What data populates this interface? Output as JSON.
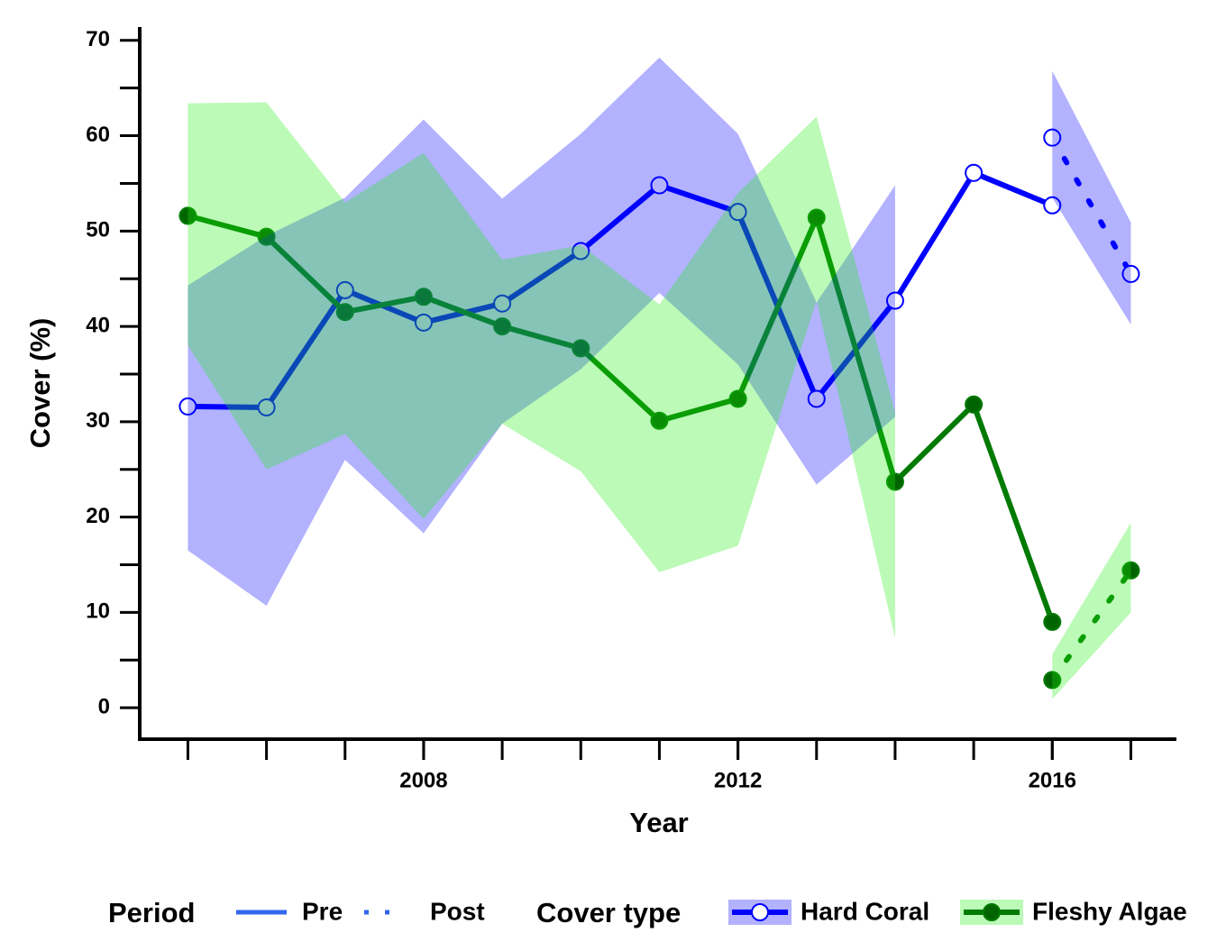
{
  "chart_data": {
    "type": "line",
    "x_label": "Year",
    "y_label": "Cover (%)",
    "xlim": [
      2004.41,
      2017.58
    ],
    "ylim": [
      -3.3,
      71.4
    ],
    "xticks": [
      2008,
      2012,
      2016
    ],
    "xminor_ticks": [
      2005,
      2006,
      2007,
      2008,
      2009,
      2010,
      2011,
      2012,
      2013,
      2014,
      2015,
      2016,
      2017
    ],
    "yticks": [
      0,
      10,
      20,
      30,
      40,
      50,
      60,
      70
    ],
    "yminor_ticks": [
      5,
      15,
      25,
      35,
      45,
      55,
      65
    ],
    "legend": {
      "period_title": "Period",
      "cover_type_title": "Cover type",
      "period_color": "#3366ee"
    },
    "periods": [
      {
        "name": "Pre",
        "dash": "solid"
      },
      {
        "name": "Post",
        "dash": "dotted"
      }
    ],
    "cover_types": [
      {
        "name": "Hard Coral",
        "color": "#0000ff",
        "ribbon_color": "#0000ff",
        "marker_fill": "#ffffff"
      },
      {
        "name": "Fleshy Algae",
        "color": "#007a00",
        "ribbon_color": "#22ee11",
        "marker_fill": "#006400"
      }
    ],
    "series": [
      {
        "cover_type": "Hard Coral",
        "period": "Pre",
        "x": [
          2005,
          2006,
          2007,
          2008,
          2009,
          2010,
          2011,
          2012,
          2013,
          2014,
          2015,
          2016
        ],
        "values": [
          31.6,
          31.5,
          43.8,
          40.4,
          42.4,
          47.9,
          54.8,
          52.0,
          32.4,
          42.7,
          56.1,
          52.7
        ],
        "upper": [
          44.3,
          49.5,
          53.5,
          61.7,
          53.4,
          60.2,
          68.2,
          60.2,
          42.5,
          54.8,
          null,
          null
        ],
        "lower": [
          16.5,
          10.7,
          26.0,
          18.3,
          29.8,
          35.5,
          43.5,
          36.0,
          23.4,
          30.5,
          null,
          null
        ]
      },
      {
        "cover_type": "Hard Coral",
        "period": "Post",
        "x": [
          2016,
          2017
        ],
        "values": [
          59.8,
          45.5
        ],
        "upper": [
          66.8,
          50.9
        ],
        "lower": [
          53.5,
          40.2
        ]
      },
      {
        "cover_type": "Fleshy Algae",
        "period": "Pre",
        "x": [
          2005,
          2006,
          2007,
          2008,
          2009,
          2010,
          2011,
          2012,
          2013,
          2014,
          2015,
          2016
        ],
        "values": [
          51.6,
          49.4,
          41.5,
          43.1,
          40.0,
          37.7,
          30.1,
          32.4,
          51.4,
          23.7,
          31.8,
          9.0
        ],
        "upper": [
          63.4,
          63.5,
          53.0,
          58.2,
          47.0,
          48.5,
          42.3,
          54.0,
          62.0,
          31.0,
          null,
          null
        ],
        "lower": [
          38.0,
          25.0,
          28.7,
          19.8,
          29.8,
          24.8,
          14.2,
          17.0,
          42.7,
          7.3,
          null,
          null
        ]
      },
      {
        "cover_type": "Fleshy Algae",
        "period": "Post",
        "x": [
          2016,
          2017
        ],
        "values": [
          2.9,
          14.4
        ],
        "upper": [
          5.6,
          19.4
        ],
        "lower": [
          0.9,
          10.0
        ]
      }
    ]
  }
}
